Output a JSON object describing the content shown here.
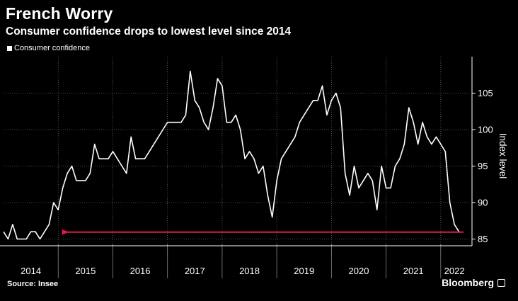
{
  "colors": {
    "line": "#ffffff",
    "arrow": "#e0194d",
    "grid": "#666666",
    "background": "#000000"
  },
  "chart_data": {
    "type": "line",
    "title": "French Worry",
    "subtitle": "Consumer confidence drops to lowest level since 2014",
    "legend": [
      "Consumer confidence"
    ],
    "ylabel": "Index level",
    "source": "Source: Insee",
    "brand": "Bloomberg",
    "ylim": [
      84,
      110
    ],
    "yticks": [
      85,
      90,
      95,
      100,
      105
    ],
    "years": [
      "2014",
      "2015",
      "2016",
      "2017",
      "2018",
      "2019",
      "2020",
      "2021",
      "2022"
    ],
    "start": "2014-01",
    "end": "2022-06",
    "series": [
      {
        "name": "Consumer confidence",
        "values": [
          86,
          85,
          87,
          85,
          85,
          85,
          86,
          86,
          85,
          86,
          87,
          90,
          89,
          92,
          94,
          95,
          93,
          93,
          93,
          94,
          98,
          96,
          96,
          96,
          97,
          96,
          95,
          94,
          99,
          96,
          96,
          96,
          97,
          98,
          99,
          100,
          101,
          101,
          101,
          101,
          102,
          108,
          104,
          103,
          101,
          100,
          103,
          107,
          106,
          101,
          101,
          102,
          100,
          96,
          97,
          96,
          94,
          95,
          91,
          88,
          93,
          96,
          97,
          98,
          99,
          101,
          102,
          103,
          104,
          104,
          106,
          102,
          104,
          105,
          103,
          94,
          91,
          95,
          92,
          93,
          94,
          93,
          89,
          95,
          92,
          92,
          95,
          96,
          98,
          103,
          101,
          98,
          101,
          99,
          98,
          99,
          98,
          97,
          90,
          87,
          86
        ]
      }
    ],
    "annotation": {
      "type": "arrow",
      "value": 86,
      "note": "lowest level since 2014"
    }
  }
}
